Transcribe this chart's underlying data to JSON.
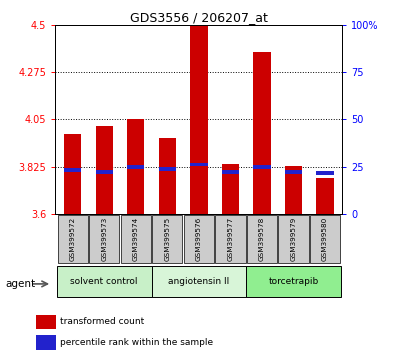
{
  "title": "GDS3556 / 206207_at",
  "samples": [
    "GSM399572",
    "GSM399573",
    "GSM399574",
    "GSM399575",
    "GSM399576",
    "GSM399577",
    "GSM399578",
    "GSM399579",
    "GSM399580"
  ],
  "red_values": [
    3.98,
    4.02,
    4.05,
    3.96,
    4.5,
    3.84,
    4.37,
    3.83,
    3.77
  ],
  "blue_values": [
    3.81,
    3.8,
    3.825,
    3.815,
    3.835,
    3.8,
    3.825,
    3.8,
    3.795
  ],
  "ymin": 3.6,
  "ymax": 4.5,
  "yticks": [
    3.6,
    3.825,
    4.05,
    4.275,
    4.5
  ],
  "ytick_labels": [
    "3.6",
    "3.825",
    "4.05",
    "4.275",
    "4.5"
  ],
  "right_yticks": [
    0,
    25,
    50,
    75,
    100
  ],
  "right_ytick_labels": [
    "0",
    "25",
    "50",
    "75",
    "100%"
  ],
  "groups": [
    {
      "label": "solvent control",
      "start": 0,
      "end": 3,
      "color": "#c8f0c8"
    },
    {
      "label": "angiotensin II",
      "start": 3,
      "end": 6,
      "color": "#d8f5d8"
    },
    {
      "label": "torcetrapib",
      "start": 6,
      "end": 9,
      "color": "#90ee90"
    }
  ],
  "bar_color": "#cc0000",
  "blue_marker_color": "#2222cc",
  "bar_width": 0.55,
  "agent_label": "agent",
  "legend_red": "transformed count",
  "legend_blue": "percentile rank within the sample"
}
